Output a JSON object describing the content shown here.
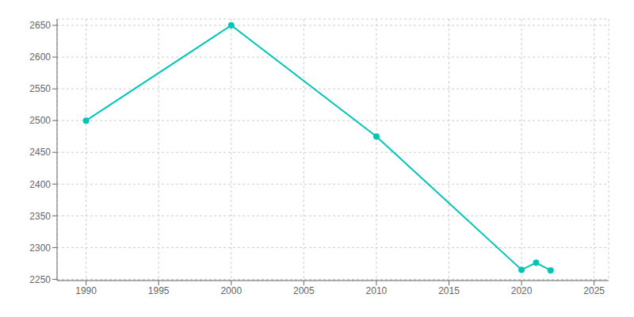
{
  "chart_data": {
    "type": "line",
    "x": [
      1990,
      2000,
      2010,
      2020,
      2021,
      2022
    ],
    "values": [
      2500,
      2650,
      2475,
      2265,
      2276,
      2264
    ],
    "color": "#00C5B8",
    "marker": "circle",
    "xlim": [
      1988,
      2026
    ],
    "ylim": [
      2248,
      2660
    ],
    "xticks": [
      1990,
      1995,
      2000,
      2005,
      2010,
      2015,
      2020,
      2025
    ],
    "yticks": [
      2250,
      2300,
      2350,
      2400,
      2450,
      2500,
      2550,
      2600,
      2650
    ],
    "grid": true
  }
}
